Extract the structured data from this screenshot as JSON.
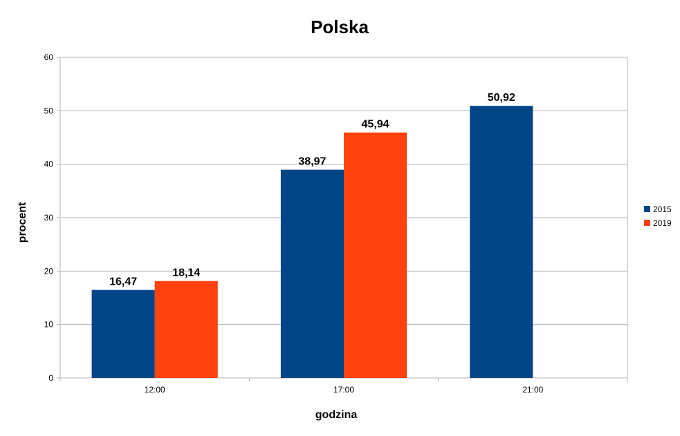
{
  "chart_data": {
    "type": "bar",
    "title": "Polska",
    "xlabel": "godzina",
    "ylabel": "procent",
    "categories": [
      "12:00",
      "17:00",
      "21:00"
    ],
    "series": [
      {
        "name": "2015",
        "color": "#004586",
        "values": [
          16.47,
          38.97,
          50.92
        ],
        "labels": [
          "16,47",
          "38,97",
          "50,92"
        ]
      },
      {
        "name": "2019",
        "color": "#ff420e",
        "values": [
          18.14,
          45.94,
          null
        ],
        "labels": [
          "18,14",
          "45,94",
          null
        ]
      }
    ],
    "ylim": [
      0,
      60
    ],
    "yticks": [
      0,
      10,
      20,
      30,
      40,
      50,
      60
    ],
    "grid": true,
    "legend": "right"
  }
}
